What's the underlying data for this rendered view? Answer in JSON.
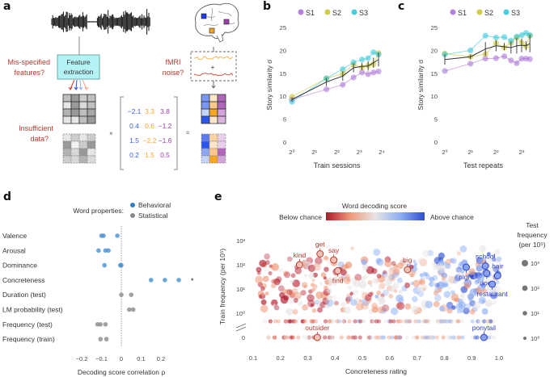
{
  "panels": {
    "a": {
      "label": "a",
      "feature_box": "Feature\nextraction",
      "feature_box_line1": "Feature",
      "feature_box_line2": "extraction",
      "q_misspecified_1": "Mis-specified",
      "q_misspecified_2": "features?",
      "q_fmri_1": "fMRI",
      "q_fmri_2": "noise?",
      "q_insufficient_1": "Insufficient",
      "q_insufficient_2": "data?",
      "times_symbol": "×",
      "equals_symbol": "=",
      "plus_symbol": "+",
      "weight_matrix": [
        [
          "−2.1",
          "3.3",
          "3.8"
        ],
        [
          "0.4",
          "0.6",
          "−1.2"
        ],
        [
          "1.5",
          "−2.2",
          "−1.6"
        ],
        [
          "0.2",
          "1.5",
          "0.5"
        ]
      ],
      "weight_colors": [
        "#3d5ee0",
        "#f5a623",
        "#9b3fa8"
      ],
      "feature_grid_solid": [
        [
          0.75,
          0.6,
          0.8,
          0.75
        ],
        [
          0.9,
          0.6,
          0.85,
          0.75
        ],
        [
          0.7,
          0.6,
          0.75,
          0.65
        ],
        [
          0.9,
          0.9,
          0.75,
          0.6
        ]
      ],
      "feature_grid_dashed": [
        [
          0.9,
          0.8,
          0.9,
          0.8
        ],
        [
          0.6,
          0.95,
          0.8,
          0.6
        ],
        [
          0.7,
          0.85,
          0.6,
          0.9
        ],
        [
          0.8,
          0.85,
          0.7,
          0.85
        ]
      ],
      "brain_grid_solid": [
        [
          "#7b97f5",
          "#fde6c6",
          "#b066b8"
        ],
        [
          "#7b97f5",
          "#fcc78a",
          "#b066b8"
        ],
        [
          "#c5d2fb",
          "#f5a623",
          "#d3a4d8"
        ],
        [
          "#2c55ef",
          "#fde6c6",
          "#dab4de"
        ]
      ],
      "brain_grid_dashed": [
        [
          "#5b7bf2",
          "#fcd39e",
          "#eacfec"
        ],
        [
          "#2c55ef",
          "#fde6c6",
          "#eacfec"
        ],
        [
          "#8ea6f6",
          "#fcc78a",
          "#b066b8"
        ],
        [
          "#c5d2fb",
          "#f5a623",
          "#d3a4d8"
        ]
      ],
      "brain_roi_colors": [
        "#1f3df0",
        "#f5a623",
        "#9b3fa8"
      ]
    },
    "b": {
      "label": "b"
    },
    "c": {
      "label": "c"
    },
    "d": {
      "label": "d"
    },
    "e": {
      "label": "e"
    }
  },
  "chart_data": [
    {
      "id": "b",
      "type": "line",
      "title": "",
      "xlabel": "Train sessions",
      "ylabel": "Story similarity σ",
      "x_scale": "log2",
      "xticks": [
        1,
        2,
        4,
        8,
        16
      ],
      "xtick_labels": [
        "2⁰",
        "2¹",
        "2²",
        "2³",
        "2⁴"
      ],
      "yticks": [
        0,
        5,
        10,
        15,
        20,
        25
      ],
      "ylim": [
        0,
        25
      ],
      "legend": [
        "S1",
        "S2",
        "S3"
      ],
      "legend_position": "top",
      "x": [
        1,
        2.9,
        4.8,
        6.7,
        8.7,
        10.5,
        12.4,
        14.5
      ],
      "series": [
        {
          "name": "S1",
          "color": "#a56cd1",
          "values": [
            9.3,
            11.5,
            12.5,
            14.1,
            15.2,
            14.8,
            15.2,
            15.4
          ]
        },
        {
          "name": "S2",
          "color": "#c8c22a",
          "values": [
            9.9,
            13.9,
            14.9,
            16.9,
            16.3,
            16.7,
            17.0,
            19.4
          ]
        },
        {
          "name": "S3",
          "color": "#2cc3d6",
          "values": [
            8.8,
            13.9,
            15.9,
            17.4,
            18.0,
            18.3,
            19.6,
            19.1
          ]
        },
        {
          "name": "mean",
          "color": "#333333",
          "values": [
            9.3,
            13.1,
            14.4,
            16.2,
            16.5,
            16.6,
            17.3,
            18.0
          ],
          "err": [
            0.4,
            0.9,
            1.0,
            1.0,
            0.8,
            1.0,
            1.1,
            1.5
          ]
        }
      ]
    },
    {
      "id": "c",
      "type": "line",
      "title": "",
      "xlabel": "Test repeats",
      "ylabel": "Story similarity σ",
      "x_scale": "log2",
      "xticks": [
        1,
        2,
        4,
        8
      ],
      "xtick_labels": [
        "2⁰",
        "2¹",
        "2²",
        "2³"
      ],
      "yticks": [
        0,
        5,
        10,
        15,
        20,
        25
      ],
      "ylim": [
        0,
        25
      ],
      "legend": [
        "S1",
        "S2",
        "S3"
      ],
      "legend_position": "top",
      "x": [
        1,
        2,
        3,
        4,
        5,
        6,
        7,
        8,
        9,
        10
      ],
      "series": [
        {
          "name": "S1",
          "color": "#a56cd1",
          "values": [
            15.5,
            17.1,
            18.2,
            18.3,
            18.7,
            17.8,
            17.2,
            18.2,
            18.2,
            18.1
          ]
        },
        {
          "name": "S2",
          "color": "#c8c22a",
          "values": [
            19.3,
            18.6,
            19.2,
            21.6,
            20.6,
            21.6,
            22.8,
            21.7,
            20.9,
            23.2
          ]
        },
        {
          "name": "S3",
          "color": "#2cc3d6",
          "values": [
            19.1,
            20.0,
            23.2,
            22.8,
            22.9,
            22.1,
            23.0,
            23.3,
            23.8,
            23.3
          ]
        },
        {
          "name": "mean",
          "color": "#333333",
          "values": [
            18.0,
            18.6,
            20.3,
            21.0,
            20.8,
            20.6,
            21.0,
            21.1,
            21.0,
            21.5
          ],
          "err": [
            1.1,
            0.5,
            1.5,
            1.2,
            0.8,
            1.3,
            1.7,
            1.5,
            1.0,
            1.9
          ]
        }
      ]
    },
    {
      "id": "d",
      "type": "scatter",
      "xlabel": "Decoding score correlation ρ",
      "xticks": [
        -0.2,
        -0.1,
        0,
        0.1,
        0.2
      ],
      "xtick_labels": [
        "−0.2",
        "−0.1",
        "0",
        "0.1",
        "0.2"
      ],
      "xlim": [
        -0.2,
        0.3
      ],
      "legend_title": "Word properties:",
      "legend": [
        {
          "name": "Behavioral",
          "color": "#2e7fc4"
        },
        {
          "name": "Statistical",
          "color": "#888888"
        }
      ],
      "legend_position": "top-right",
      "categories": [
        "Valence",
        "Arousal",
        "Dominance",
        "Concreteness",
        "Duration (test)",
        "LM probability (test)",
        "Frequency (test)",
        "Frequency (train)"
      ],
      "groups": [
        "Behavioral",
        "Behavioral",
        "Behavioral",
        "Behavioral",
        "Statistical",
        "Statistical",
        "Statistical",
        "Statistical"
      ],
      "values": [
        [
          -0.1,
          -0.09,
          -0.02
        ],
        [
          -0.115,
          -0.08,
          -0.065
        ],
        [
          -0.085,
          -0.005,
          0.0
        ],
        [
          0.15,
          0.22,
          0.29
        ],
        [
          0.0,
          0.05
        ],
        [
          0.04,
          0.06
        ],
        [
          -0.12,
          -0.105,
          -0.08
        ],
        [
          -0.105,
          -0.075
        ]
      ],
      "annotations": [
        {
          "category": "Concreteness",
          "text": "*"
        }
      ]
    },
    {
      "id": "e",
      "type": "scatter",
      "title": "Word decoding score",
      "colorbar_low_label": "Below chance",
      "colorbar_high_label": "Above chance",
      "colorbar_colors": [
        "#b2182b",
        "#ef9a7a",
        "#e8e4e4",
        "#8fb0f5",
        "#2f4fd1"
      ],
      "xlabel": "Concreteness rating",
      "ylabel": "Train frequency (per 10⁵)",
      "xticks": [
        0.1,
        0.2,
        0.3,
        0.4,
        0.5,
        0.6,
        0.7,
        0.8,
        0.9,
        1.0
      ],
      "xtick_labels": [
        "0.1",
        "0.2",
        "0.3",
        "0.4",
        "0.5",
        "0.6",
        "0.7",
        "0.8",
        "0.9",
        "1.0"
      ],
      "xlim": [
        0.1,
        1.0
      ],
      "y_scale": "log10 with broken axis at 0",
      "yticks": [
        "0",
        "10⁰",
        "10¹",
        "10²",
        "10³"
      ],
      "size_legend_title": [
        "Test",
        "frequency",
        "(per 10⁵)"
      ],
      "size_legend": [
        "10³",
        "10²",
        "10¹",
        "10⁰"
      ],
      "labeled_words": [
        {
          "word": "kind",
          "x": 0.27,
          "logy": 2.0,
          "score": "below",
          "label_pos": "above"
        },
        {
          "word": "get",
          "x": 0.345,
          "logy": 2.45,
          "score": "below",
          "label_pos": "above"
        },
        {
          "word": "say",
          "x": 0.395,
          "logy": 2.2,
          "score": "below",
          "label_pos": "above"
        },
        {
          "word": "find",
          "x": 0.41,
          "logy": 1.75,
          "score": "below",
          "label_pos": "below"
        },
        {
          "word": "big",
          "x": 0.665,
          "logy": 1.8,
          "score": "below",
          "label_pos": "above"
        },
        {
          "word": "night",
          "x": 0.88,
          "logy": 1.9,
          "score": "above",
          "label_pos": "below"
        },
        {
          "word": "school",
          "x": 0.95,
          "logy": 1.95,
          "score": "above",
          "label_pos": "above"
        },
        {
          "word": "hair",
          "x": 0.995,
          "logy": 1.55,
          "score": "above",
          "label_pos": "above"
        },
        {
          "word": "door",
          "x": 0.955,
          "logy": 1.65,
          "score": "above",
          "label_pos": "below"
        },
        {
          "word": "restaurant",
          "x": 0.975,
          "logy": 1.2,
          "score": "above",
          "label_pos": "below"
        },
        {
          "word": "outsider",
          "x": 0.335,
          "logy": "zero",
          "score": "below",
          "label_pos": "above"
        },
        {
          "word": "ponytail",
          "x": 0.945,
          "logy": "zero",
          "score": "above",
          "label_pos": "above"
        }
      ]
    }
  ]
}
